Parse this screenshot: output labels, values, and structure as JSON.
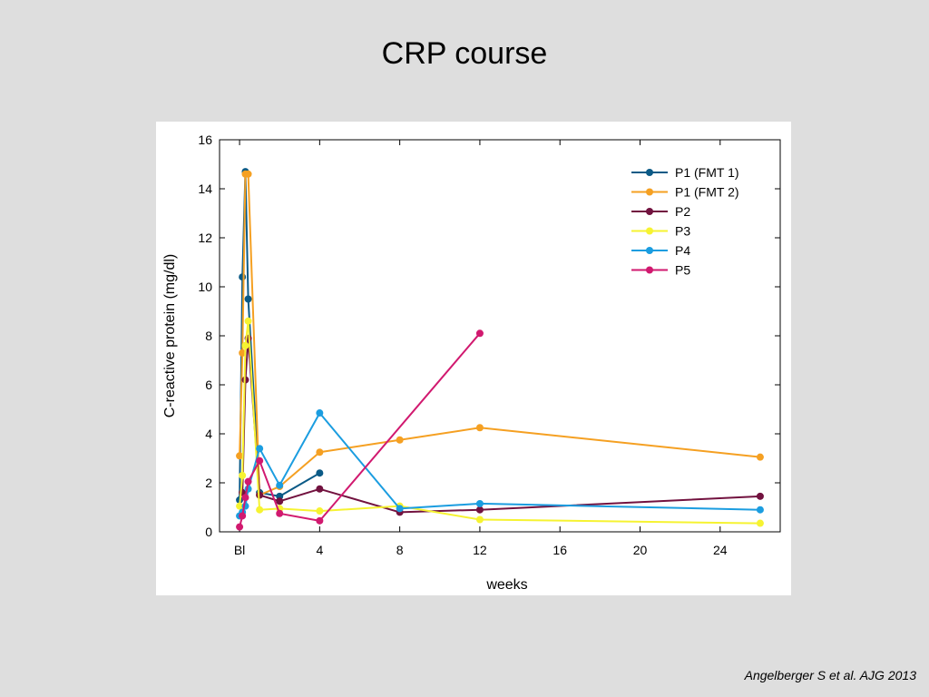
{
  "slide": {
    "title": "CRP course",
    "citation": "Angelberger S et al. AJG 2013"
  },
  "chart_data": {
    "type": "line",
    "xlabel": "weeks",
    "ylabel": "C-reactive protein (mg/dl)",
    "xlim": [
      -1,
      27
    ],
    "ylim": [
      0,
      16
    ],
    "x_ticks": [
      {
        "value": 0,
        "label": "Bl"
      },
      {
        "value": 4,
        "label": "4"
      },
      {
        "value": 8,
        "label": "8"
      },
      {
        "value": 12,
        "label": "12"
      },
      {
        "value": 16,
        "label": "16"
      },
      {
        "value": 20,
        "label": "20"
      },
      {
        "value": 24,
        "label": "24"
      }
    ],
    "y_ticks": [
      0,
      2,
      4,
      6,
      8,
      10,
      12,
      14,
      16
    ],
    "legend_position": "top-right",
    "grid": false,
    "series": [
      {
        "name": "P1 (FMT 1)",
        "color": "#0b5a86",
        "points": [
          [
            0,
            1.3
          ],
          [
            0.14,
            10.4
          ],
          [
            0.29,
            14.7
          ],
          [
            0.43,
            9.5
          ],
          [
            1,
            1.6
          ],
          [
            2,
            1.45
          ],
          [
            4,
            2.4
          ]
        ]
      },
      {
        "name": "P1 (FMT 2)",
        "color": "#f5a022",
        "points": [
          [
            0,
            3.1
          ],
          [
            0.14,
            7.3
          ],
          [
            0.29,
            14.6
          ],
          [
            0.43,
            14.6
          ],
          [
            1,
            1.5
          ],
          [
            2,
            1.85
          ],
          [
            4,
            3.25
          ],
          [
            8,
            3.75
          ],
          [
            12,
            4.25
          ],
          [
            26,
            3.05
          ]
        ]
      },
      {
        "name": "P2",
        "color": "#72123f",
        "points": [
          [
            0.14,
            1.6
          ],
          [
            0.29,
            6.2
          ],
          [
            0.43,
            7.9
          ],
          [
            1,
            1.5
          ],
          [
            2,
            1.25
          ],
          [
            4,
            1.75
          ],
          [
            8,
            0.8
          ],
          [
            12,
            0.9
          ],
          [
            26,
            1.45
          ]
        ]
      },
      {
        "name": "P3",
        "color": "#f6f331",
        "points": [
          [
            0,
            1.05
          ],
          [
            0.14,
            2.3
          ],
          [
            0.29,
            7.6
          ],
          [
            0.43,
            8.6
          ],
          [
            1,
            0.9
          ],
          [
            2,
            0.95
          ],
          [
            4,
            0.85
          ],
          [
            8,
            1.05
          ],
          [
            12,
            0.5
          ],
          [
            26,
            0.35
          ]
        ]
      },
      {
        "name": "P4",
        "color": "#1b9de0",
        "points": [
          [
            0,
            0.65
          ],
          [
            0.14,
            0.8
          ],
          [
            0.29,
            1.05
          ],
          [
            0.43,
            1.75
          ],
          [
            1,
            3.4
          ],
          [
            2,
            1.9
          ],
          [
            4,
            4.85
          ],
          [
            8,
            0.95
          ],
          [
            12,
            1.15
          ],
          [
            26,
            0.9
          ]
        ]
      },
      {
        "name": "P5",
        "color": "#d1196f",
        "points": [
          [
            0,
            0.2
          ],
          [
            0.14,
            0.65
          ],
          [
            0.29,
            1.4
          ],
          [
            0.43,
            2.05
          ],
          [
            1,
            2.9
          ],
          [
            2,
            0.75
          ],
          [
            4,
            0.45
          ],
          [
            12,
            8.1
          ]
        ]
      }
    ]
  }
}
